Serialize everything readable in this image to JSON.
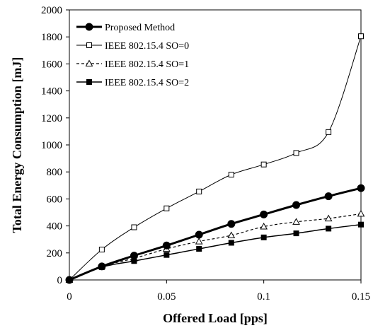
{
  "chart_data": {
    "type": "line",
    "title": "",
    "xlabel": "Offered Load [pps]",
    "ylabel": "Total Energy Consumption [mJ]",
    "xlim": [
      0,
      0.15
    ],
    "ylim": [
      0,
      2000
    ],
    "xticks": [
      0,
      0.05,
      0.1,
      0.15
    ],
    "xtick_labels": [
      "0",
      "0.05",
      "0.1",
      "0.15"
    ],
    "yticks": [
      0,
      200,
      400,
      600,
      800,
      1000,
      1200,
      1400,
      1600,
      1800,
      2000
    ],
    "ytick_labels": [
      "0",
      "200",
      "400",
      "600",
      "800",
      "1000",
      "1200",
      "1400",
      "1600",
      "1800",
      "2000"
    ],
    "grid": false,
    "legend_position": "top-left",
    "x": [
      0,
      0.0167,
      0.0333,
      0.05,
      0.0667,
      0.0833,
      0.1,
      0.1167,
      0.1333,
      0.15
    ],
    "series": [
      {
        "name": "Proposed Method",
        "marker": "filled-circle",
        "line": "solid-thick",
        "color": "#000000",
        "values": [
          0,
          100,
          180,
          255,
          335,
          415,
          485,
          555,
          620,
          680
        ]
      },
      {
        "name": "IEEE 802.15.4 SO=0",
        "marker": "open-square",
        "line": "solid-thin",
        "color": "#000000",
        "values": [
          0,
          225,
          390,
          530,
          655,
          780,
          855,
          940,
          1095,
          1805
        ]
      },
      {
        "name": "IEEE 802.15.4 SO=1",
        "marker": "open-triangle",
        "line": "dashed",
        "color": "#000000",
        "values": [
          0,
          100,
          160,
          230,
          285,
          330,
          395,
          430,
          455,
          490
        ]
      },
      {
        "name": "IEEE 802.15.4 SO=2",
        "marker": "filled-square",
        "line": "solid",
        "color": "#000000",
        "values": [
          0,
          95,
          140,
          185,
          230,
          275,
          315,
          345,
          380,
          410
        ]
      }
    ]
  }
}
